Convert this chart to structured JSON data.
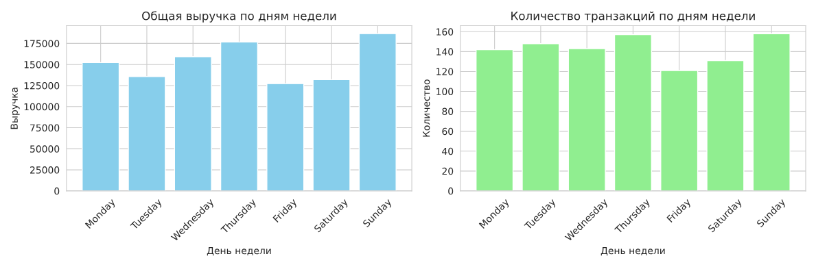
{
  "chart_data": [
    {
      "type": "bar",
      "title": "Общая выручка по дням недели",
      "xlabel": "День недели",
      "ylabel": "Выручка",
      "categories": [
        "Monday",
        "Tuesday",
        "Wednesday",
        "Thursday",
        "Friday",
        "Saturday",
        "Sunday"
      ],
      "values": [
        152300,
        135700,
        159300,
        176700,
        127300,
        132000,
        186600
      ],
      "color": "#87ceeb",
      "ylim": [
        0,
        196000
      ],
      "yticks": [
        0,
        25000,
        50000,
        75000,
        100000,
        125000,
        150000,
        175000
      ],
      "grid": true
    },
    {
      "type": "bar",
      "title": "Количество транзакций по дням недели",
      "xlabel": "День недели",
      "ylabel": "Количество",
      "categories": [
        "Monday",
        "Tuesday",
        "Wednesday",
        "Thursday",
        "Friday",
        "Saturday",
        "Sunday"
      ],
      "values": [
        142,
        148,
        143,
        157,
        121,
        131,
        158
      ],
      "color": "#90ee90",
      "ylim": [
        0,
        166
      ],
      "yticks": [
        0,
        20,
        40,
        60,
        80,
        100,
        120,
        140,
        160
      ],
      "grid": true
    }
  ]
}
